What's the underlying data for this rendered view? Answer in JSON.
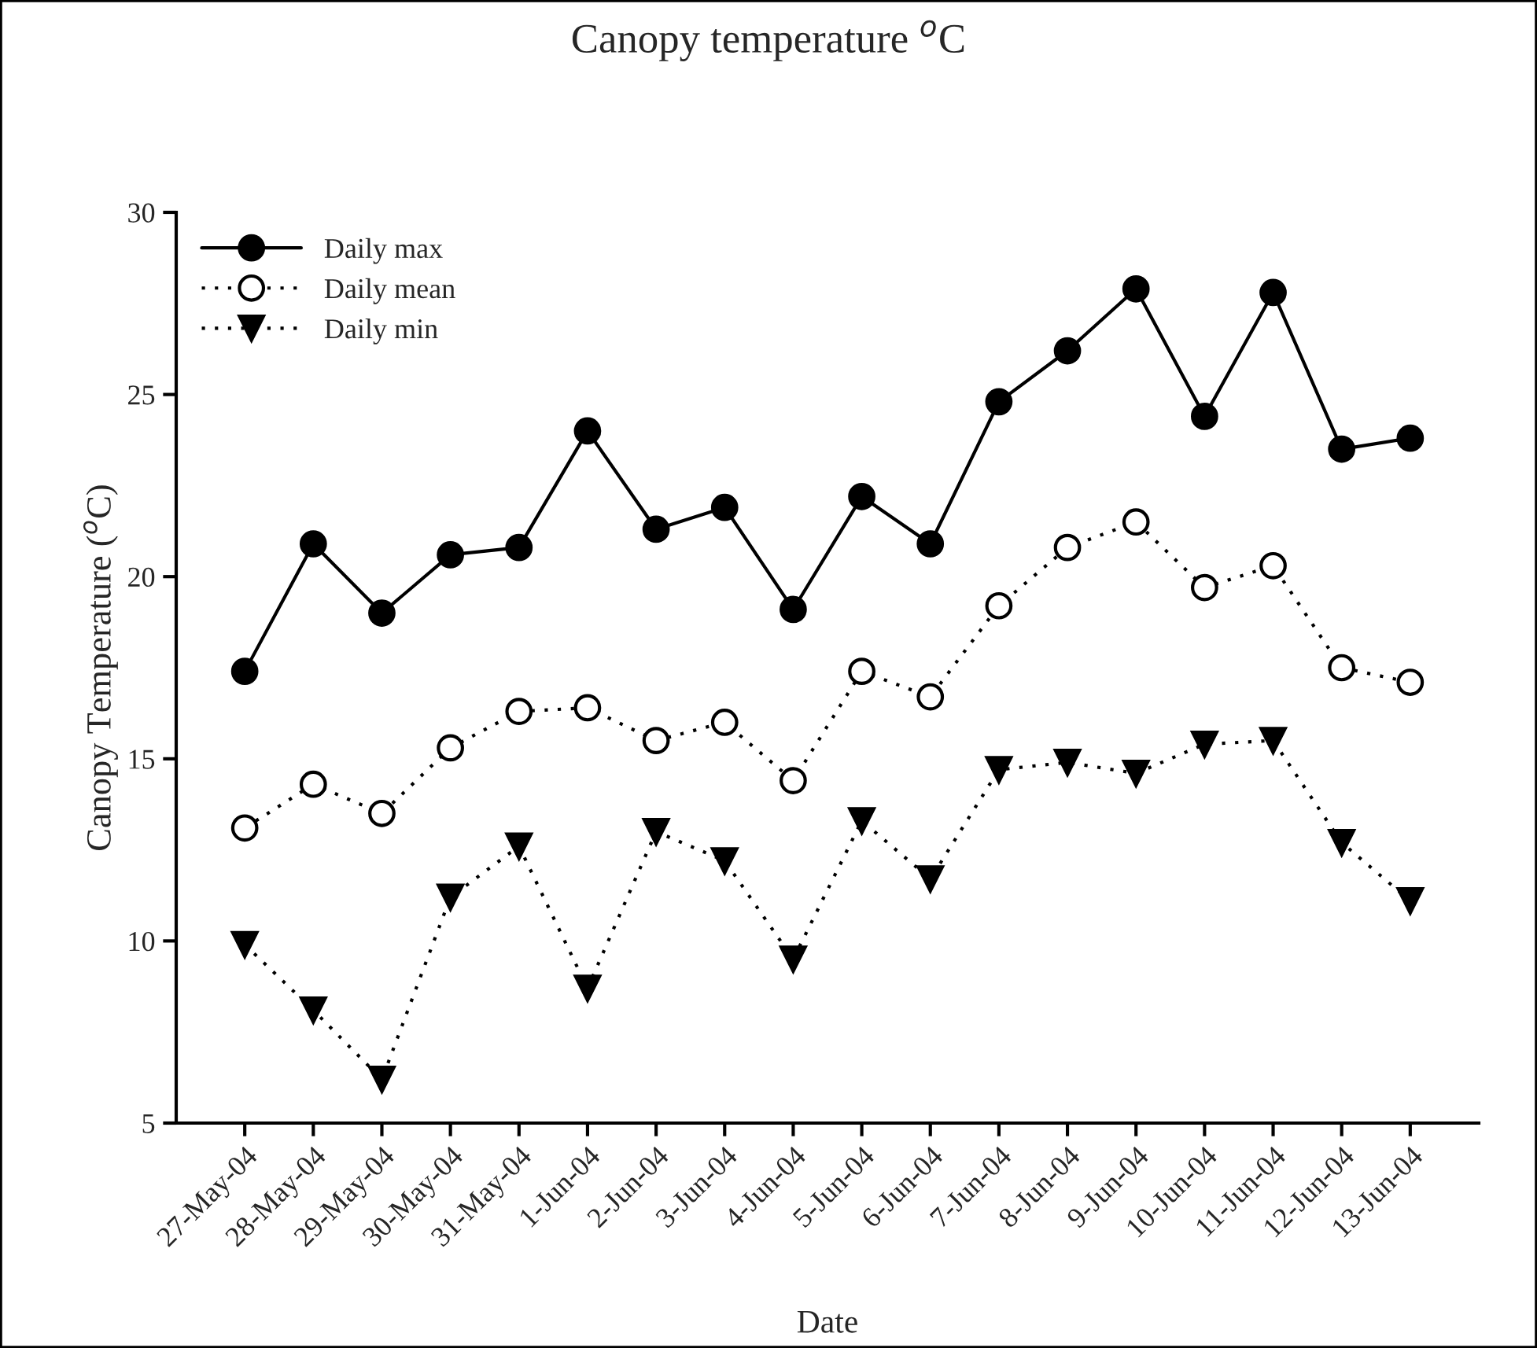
{
  "chart_data": {
    "type": "line",
    "title": "Canopy temperature $^{o}$C",
    "xlabel": "Date",
    "ylabel": "Canopy Temperature ($^{o}$C)",
    "categories": [
      "27-May-04",
      "28-May-04",
      "29-May-04",
      "30-May-04",
      "31-May-04",
      "1-Jun-04",
      "2-Jun-04",
      "3-Jun-04",
      "4-Jun-04",
      "5-Jun-04",
      "6-Jun-04",
      "7-Jun-04",
      "8-Jun-04",
      "9-Jun-04",
      "10-Jun-04",
      "11-Jun-04",
      "12-Jun-04",
      "13-Jun-04"
    ],
    "series": [
      {
        "name": "Daily max",
        "color": "#000000",
        "marker": "circle",
        "line_style": "solid",
        "values": [
          17.4,
          20.9,
          19.0,
          20.6,
          20.8,
          24.0,
          21.3,
          21.9,
          19.1,
          22.2,
          20.9,
          24.8,
          26.2,
          27.9,
          24.4,
          27.8,
          23.5,
          23.8
        ]
      },
      {
        "name": "Daily mean",
        "color": "#000000",
        "marker": "circle",
        "line_style": "dotted",
        "values": [
          13.1,
          14.3,
          13.5,
          15.3,
          16.3,
          16.4,
          15.5,
          16.0,
          14.4,
          17.4,
          16.7,
          19.2,
          20.8,
          21.5,
          19.7,
          20.3,
          17.5,
          17.1
        ]
      },
      {
        "name": "Daily min",
        "color": "#000000",
        "marker": "triangle",
        "line_style": "dotted",
        "values": [
          9.9,
          8.1,
          6.2,
          11.2,
          12.6,
          8.7,
          13.0,
          12.2,
          9.5,
          13.3,
          11.7,
          14.7,
          14.9,
          14.6,
          15.4,
          15.5,
          12.7,
          11.1
        ]
      }
    ],
    "ylim": [
      5,
      30
    ],
    "yticks": [
      5,
      10,
      15,
      20,
      25,
      30
    ],
    "grid": false,
    "legend": "top left"
  }
}
